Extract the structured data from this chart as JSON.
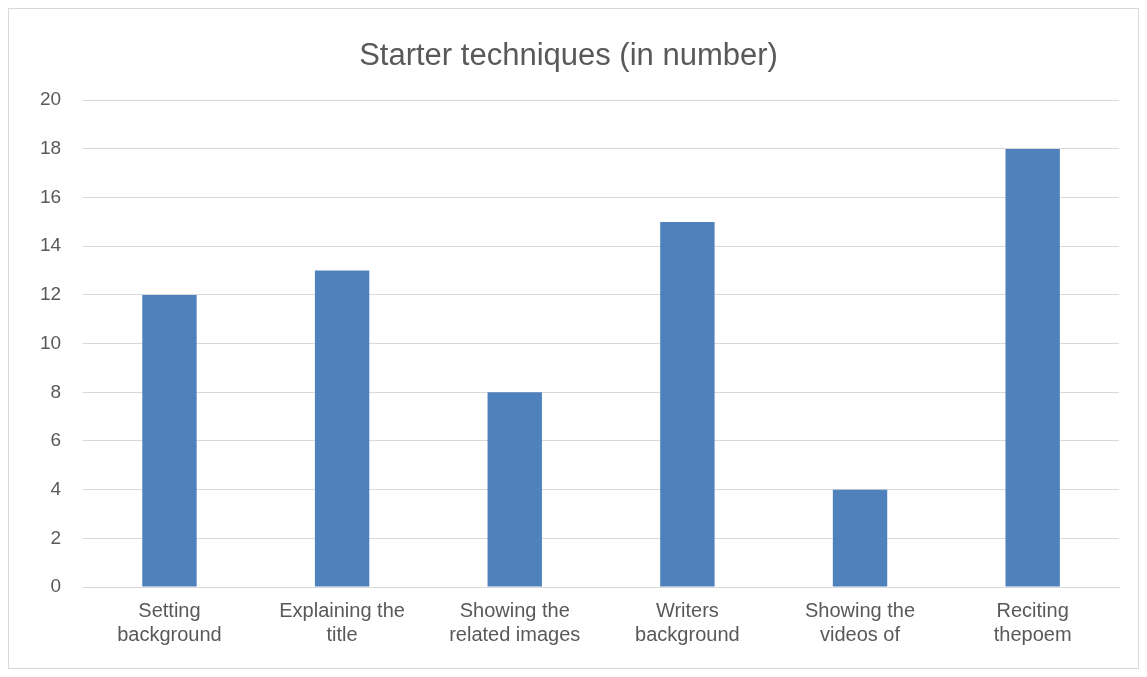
{
  "chart_data": {
    "type": "bar",
    "title": "Starter techniques (in number)",
    "categories": [
      "Setting background",
      "Explaining the title",
      "Showing the related images",
      "Writers background",
      "Showing the videos of",
      "Reciting thepoem"
    ],
    "values": [
      12,
      13,
      8,
      15,
      4,
      18
    ],
    "color": "#4f81bd",
    "ylim": [
      0,
      20
    ],
    "yticks": [
      0,
      2,
      4,
      6,
      8,
      10,
      12,
      14,
      16,
      18,
      20
    ],
    "grid": "y",
    "legend": false
  }
}
